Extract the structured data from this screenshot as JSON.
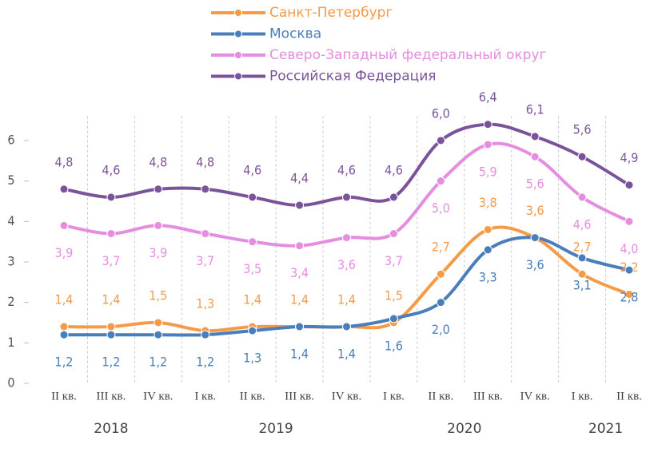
{
  "chart_data": {
    "type": "line",
    "categories": [
      "II кв.",
      "III кв.",
      "IV кв.",
      "I кв.",
      "II кв.",
      "III кв.",
      "IV кв.",
      "I кв.",
      "II кв.",
      "III кв.",
      "IV кв.",
      "I кв.",
      "II кв."
    ],
    "x_groups": [
      {
        "label": "2018",
        "size": 3
      },
      {
        "label": "2019",
        "size": 4
      },
      {
        "label": "2020",
        "size": 4
      },
      {
        "label": "2021",
        "size": 2
      }
    ],
    "series": [
      {
        "name": "Санкт-Петербург",
        "color": "#f59a47",
        "values": [
          1.4,
          1.4,
          1.5,
          1.3,
          1.4,
          1.4,
          1.4,
          1.5,
          2.7,
          3.8,
          3.6,
          2.7,
          2.2
        ],
        "value_labels": [
          "1,4",
          "1,4",
          "1,5",
          "1,3",
          "1,4",
          "1,4",
          "1,4",
          "1,5",
          "2,7",
          "3,8",
          "3,6",
          "2,7",
          "2,2"
        ],
        "label_position": "above"
      },
      {
        "name": "Москва",
        "color": "#4a7ebb",
        "values": [
          1.2,
          1.2,
          1.2,
          1.2,
          1.3,
          1.4,
          1.4,
          1.6,
          2.0,
          3.3,
          3.6,
          3.1,
          2.8
        ],
        "value_labels": [
          "1,2",
          "1,2",
          "1,2",
          "1,2",
          "1,3",
          "1,4",
          "1,4",
          "1,6",
          "2,0",
          "3,3",
          "3,6",
          "3,1",
          "2,8"
        ],
        "label_position": "below"
      },
      {
        "name": "Северо-Западный федеральный округ",
        "color": "#e58de0",
        "values": [
          3.9,
          3.7,
          3.9,
          3.7,
          3.5,
          3.4,
          3.6,
          3.7,
          5.0,
          5.9,
          5.6,
          4.6,
          4.0
        ],
        "value_labels": [
          "3,9",
          "3,7",
          "3,9",
          "3,7",
          "3,5",
          "3,4",
          "3,6",
          "3,7",
          "5,0",
          "5,9",
          "5,6",
          "4,6",
          "4,0"
        ],
        "label_position": "below"
      },
      {
        "name": "Российская Федерация",
        "color": "#7b539b",
        "values": [
          4.8,
          4.6,
          4.8,
          4.8,
          4.6,
          4.4,
          4.6,
          4.6,
          6.0,
          6.4,
          6.1,
          5.6,
          4.9
        ],
        "value_labels": [
          "4,8",
          "4,6",
          "4,8",
          "4,8",
          "4,6",
          "4,4",
          "4,6",
          "4,6",
          "6,0",
          "6,4",
          "6,1",
          "5,6",
          "4,9"
        ],
        "label_position": "above"
      }
    ],
    "ylim": [
      0,
      6.6
    ],
    "yticks": [
      0,
      1,
      2,
      3,
      4,
      5,
      6
    ],
    "grid": true,
    "smooth": true,
    "legend": "top"
  }
}
